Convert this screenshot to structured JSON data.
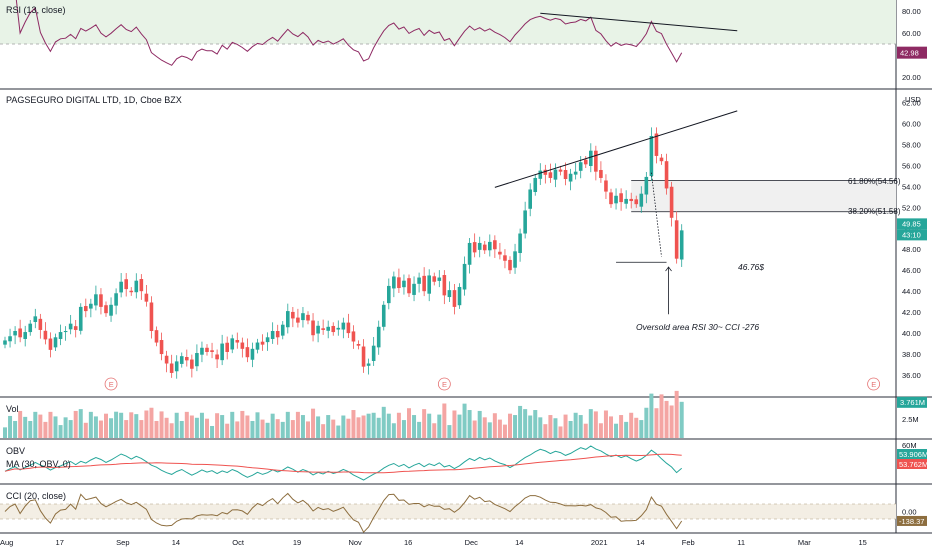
{
  "chart_data": [
    {
      "type": "line",
      "pane": "rsi",
      "title": "RSI (13, close)",
      "yticks": [
        80,
        60,
        40,
        20
      ],
      "ylim": [
        10,
        90
      ],
      "levels": [
        70,
        50
      ],
      "last_value": "42.98",
      "color": "#8e2a63"
    },
    {
      "type": "candlestick",
      "pane": "price",
      "title": "PAGSEGURO DIGITAL LTD, 1D, Cboe BZX",
      "currency": "USD",
      "yticks": [
        62.0,
        60.0,
        58.0,
        56.0,
        54.0,
        52.0,
        50.0,
        48.0,
        46.0,
        44.0,
        42.0,
        40.0,
        38.0,
        36.0
      ],
      "ylim": [
        34,
        63
      ],
      "last_price": "49.85",
      "countdown": "43:10",
      "fib_levels": [
        {
          "label": "61.80%(54.56)",
          "value": 54.56
        },
        {
          "label": "38.20%(51.58)",
          "value": 51.58
        }
      ],
      "low_label": "46.76$",
      "low_value": 46.76,
      "annotation": "Oversold area RSI 30~ CCI -276",
      "earnings_label": "E",
      "up_color": "#26a69a",
      "down_color": "#ef5350",
      "closes": [
        39.3,
        39.7,
        40.2,
        39.6,
        40.1,
        40.9,
        41.6,
        40.3,
        39.4,
        38.4,
        39.6,
        40.1,
        40.2,
        40.9,
        40.3,
        42.5,
        42.1,
        42.8,
        43.7,
        42.5,
        41.9,
        42.7,
        43.8,
        44.9,
        44.2,
        43.9,
        45.0,
        44.0,
        43.0,
        40.2,
        39.1,
        38.0,
        37.1,
        36.2,
        37.3,
        37.8,
        37.4,
        36.6,
        38.1,
        38.6,
        38.2,
        38.2,
        37.5,
        39.0,
        38.2,
        39.5,
        39.1,
        38.5,
        37.7,
        38.5,
        39.1,
        38.9,
        39.6,
        40.2,
        39.6,
        40.8,
        42.1,
        41.4,
        41.0,
        41.9,
        41.2,
        39.8,
        40.7,
        40.3,
        40.6,
        40.1,
        40.5,
        41.0,
        40.0,
        39.2,
        38.8,
        36.8,
        37.1,
        38.8,
        40.6,
        42.7,
        44.5,
        45.4,
        44.3,
        45.0,
        43.8,
        44.7,
        45.3,
        44.0,
        45.5,
        44.9,
        45.3,
        43.6,
        44.1,
        42.5,
        44.4,
        46.6,
        48.6,
        47.7,
        48.6,
        47.9,
        48.7,
        48.0,
        47.5,
        46.9,
        46.0,
        47.8,
        49.5,
        51.7,
        53.7,
        54.8,
        55.5,
        55.1,
        54.8,
        55.6,
        55.4,
        54.7,
        55.2,
        55.4,
        56.3,
        56.1,
        57.4,
        55.4,
        54.8,
        53.5,
        52.3,
        53.1,
        52.5,
        52.8,
        52.6,
        52.3,
        53.3,
        54.9,
        58.8,
        56.9,
        56.4,
        53.8,
        51.0,
        47.1,
        49.8
      ],
      "opens_offset_note_removed": true,
      "xticks": [
        {
          "label": "Aug",
          "i": 0
        },
        {
          "label": "17",
          "i": 11
        },
        {
          "label": "Sep",
          "i": 23
        },
        {
          "label": "14",
          "i": 34
        },
        {
          "label": "Oct",
          "i": 46
        },
        {
          "label": "19",
          "i": 58
        },
        {
          "label": "Nov",
          "i": 69
        },
        {
          "label": "16",
          "i": 80
        },
        {
          "label": "Dec",
          "i": 92
        },
        {
          "label": "14",
          "i": 102
        },
        {
          "label": "2021",
          "i": 117
        },
        {
          "label": "14",
          "i": 126
        },
        {
          "label": "Feb",
          "i": 135
        },
        {
          "label": "11",
          "i": 146
        },
        {
          "label": "Mar",
          "i": 158
        },
        {
          "label": "15",
          "i": 170
        }
      ]
    },
    {
      "type": "bar",
      "pane": "volume",
      "title": "Vol",
      "last_value": "3.761M",
      "tick": "2.5M"
    },
    {
      "type": "line",
      "pane": "obv",
      "title": "OBV",
      "subtitle": "MA (30, OBV, 0)",
      "obv_value": "53.906M",
      "ma_value": "53.762M",
      "tick": "60M",
      "obv_color": "#26a69a",
      "ma_color": "#ef5350"
    },
    {
      "type": "line",
      "pane": "cci",
      "title": "CCI (20, close)",
      "tick": "0.00",
      "last_value": "-138.37",
      "color": "#8d6e3f"
    }
  ]
}
